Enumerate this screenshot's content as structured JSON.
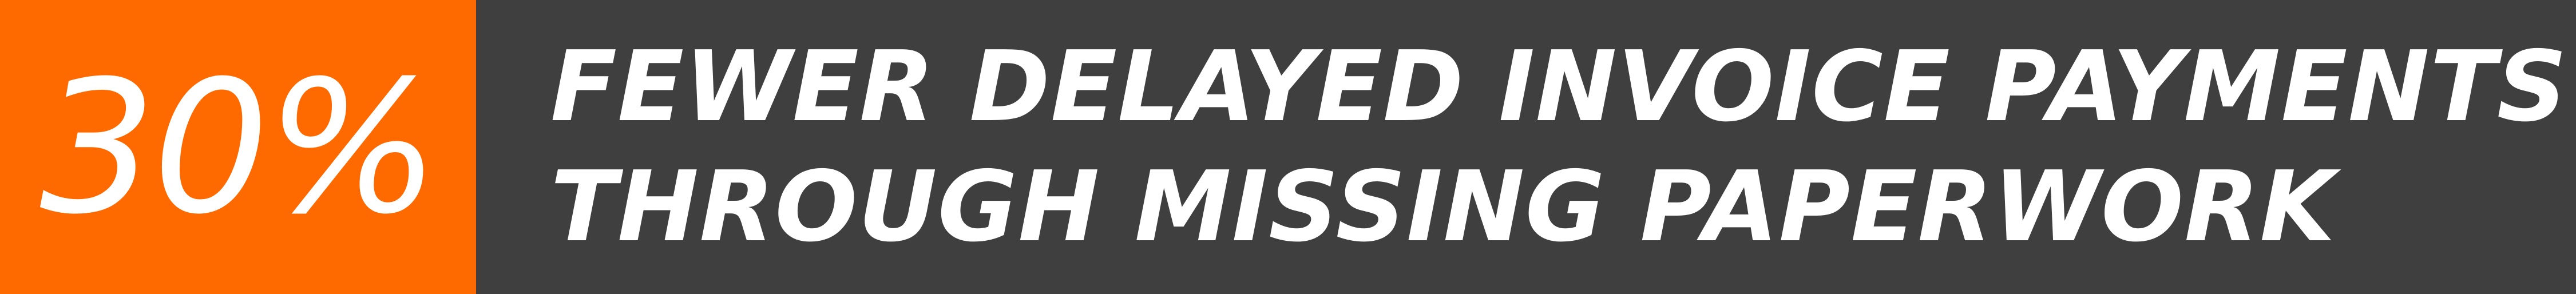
{
  "stat": {
    "value": "30%"
  },
  "message": {
    "line1": "FEWER DELAYED INVOICE PAYMENTS",
    "line2": "THROUGH MISSING PAPERWORK"
  },
  "colors": {
    "accent": "#ff6a00",
    "background": "#3f3f3f",
    "text": "#ffffff"
  }
}
